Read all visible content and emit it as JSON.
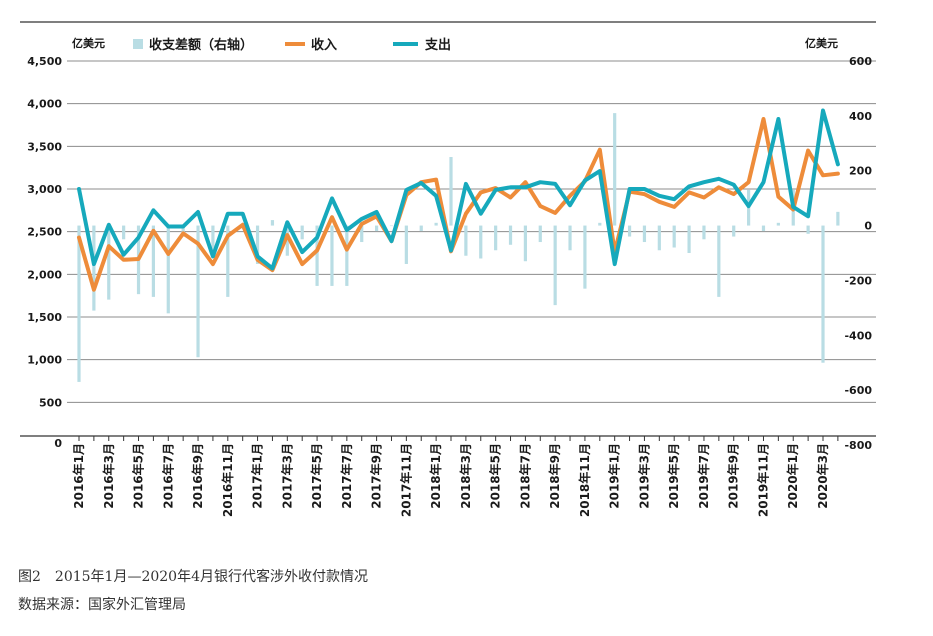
{
  "caption": {
    "title": "图2　2015年1月—2020年4月银行代客涉外收付款情况",
    "source": "数据来源：国家外汇管理局"
  },
  "colors": {
    "income": "#ee8c3a",
    "expense": "#16a9bc",
    "balance": "#b9dde4",
    "grid": "#8c8c8c",
    "axis": "#333333"
  },
  "chart_data": {
    "type": "line",
    "left_axis_unit": "亿美元",
    "right_axis_unit": "亿美元",
    "ylim_left": [
      0,
      4500
    ],
    "ylim_right": [
      -800,
      600
    ],
    "y_ticks_left": [
      "0",
      "500",
      "1,000",
      "1,500",
      "2,000",
      "2,500",
      "3,000",
      "3,500",
      "4,000",
      "4,500"
    ],
    "y_ticks_right": [
      "-800",
      "-600",
      "-400",
      "-200",
      "0",
      "200",
      "400",
      "600"
    ],
    "grid": true,
    "legend_position": "top",
    "x_tick_labels": [
      "2016年1月",
      "2016年3月",
      "2016年5月",
      "2016年7月",
      "2016年9月",
      "2016年11月",
      "2017年1月",
      "2017年3月",
      "2017年5月",
      "2017年7月",
      "2017年9月",
      "2017年11月",
      "2018年1月",
      "2018年3月",
      "2018年5月",
      "2018年7月",
      "2018年9月",
      "2018年11月",
      "2019年1月",
      "2019年3月",
      "2019年5月",
      "2019年7月",
      "2019年9月",
      "2019年11月",
      "2020年1月",
      "2020年3月"
    ],
    "x": [
      "2016-01",
      "2016-02",
      "2016-03",
      "2016-04",
      "2016-05",
      "2016-06",
      "2016-07",
      "2016-08",
      "2016-09",
      "2016-10",
      "2016-11",
      "2016-12",
      "2017-01",
      "2017-02",
      "2017-03",
      "2017-04",
      "2017-05",
      "2017-06",
      "2017-07",
      "2017-08",
      "2017-09",
      "2017-10",
      "2017-11",
      "2017-12",
      "2018-01",
      "2018-02",
      "2018-03",
      "2018-04",
      "2018-05",
      "2018-06",
      "2018-07",
      "2018-08",
      "2018-09",
      "2018-10",
      "2018-11",
      "2018-12",
      "2019-01",
      "2019-02",
      "2019-03",
      "2019-04",
      "2019-05",
      "2019-06",
      "2019-07",
      "2019-08",
      "2019-09",
      "2019-10",
      "2019-11",
      "2019-12",
      "2020-01",
      "2020-02",
      "2020-03",
      "2020-04"
    ],
    "series": [
      {
        "name": "收入",
        "axis": "left",
        "values": [
          2430,
          1820,
          2330,
          2170,
          2180,
          2510,
          2240,
          2480,
          2360,
          2120,
          2450,
          2580,
          2170,
          2050,
          2460,
          2120,
          2280,
          2670,
          2290,
          2590,
          2680,
          2390,
          2930,
          3080,
          3110,
          2270,
          2710,
          2960,
          3010,
          2900,
          3080,
          2800,
          2720,
          2920,
          3090,
          3460,
          2260,
          2970,
          2940,
          2850,
          2790,
          2960,
          2900,
          3020,
          2940,
          3080,
          3820,
          2910,
          2760,
          3450,
          3160,
          3180
        ]
      },
      {
        "name": "支出",
        "axis": "right-proxy",
        "values": [
          3000,
          2120,
          2580,
          2230,
          2430,
          2750,
          2560,
          2560,
          2730,
          2210,
          2710,
          2710,
          2210,
          2070,
          2610,
          2260,
          2430,
          2890,
          2520,
          2650,
          2730,
          2390,
          2990,
          3070,
          2920,
          2280,
          3060,
          2710,
          2990,
          3020,
          3020,
          3080,
          3060,
          2810,
          3100,
          3210,
          2120,
          3000,
          3000,
          2920,
          2880,
          3030,
          3080,
          3120,
          3050,
          2800,
          3080,
          3820,
          2790,
          2680,
          3920,
          3290
        ]
      },
      {
        "name": "收支差额（右轴）",
        "axis": "right",
        "values": [
          -570,
          -310,
          -270,
          -50,
          -250,
          -260,
          -320,
          -40,
          -480,
          -100,
          -260,
          -10,
          -140,
          20,
          -110,
          -50,
          -220,
          -220,
          -220,
          -60,
          -20,
          0,
          -140,
          -20,
          10,
          250,
          -110,
          -120,
          -90,
          -70,
          -130,
          -60,
          -290,
          -90,
          -230,
          10,
          410,
          -40,
          -60,
          -90,
          -80,
          -100,
          -50,
          -260,
          -40,
          130,
          -20,
          10,
          130,
          -30,
          -500,
          50
        ]
      }
    ]
  }
}
